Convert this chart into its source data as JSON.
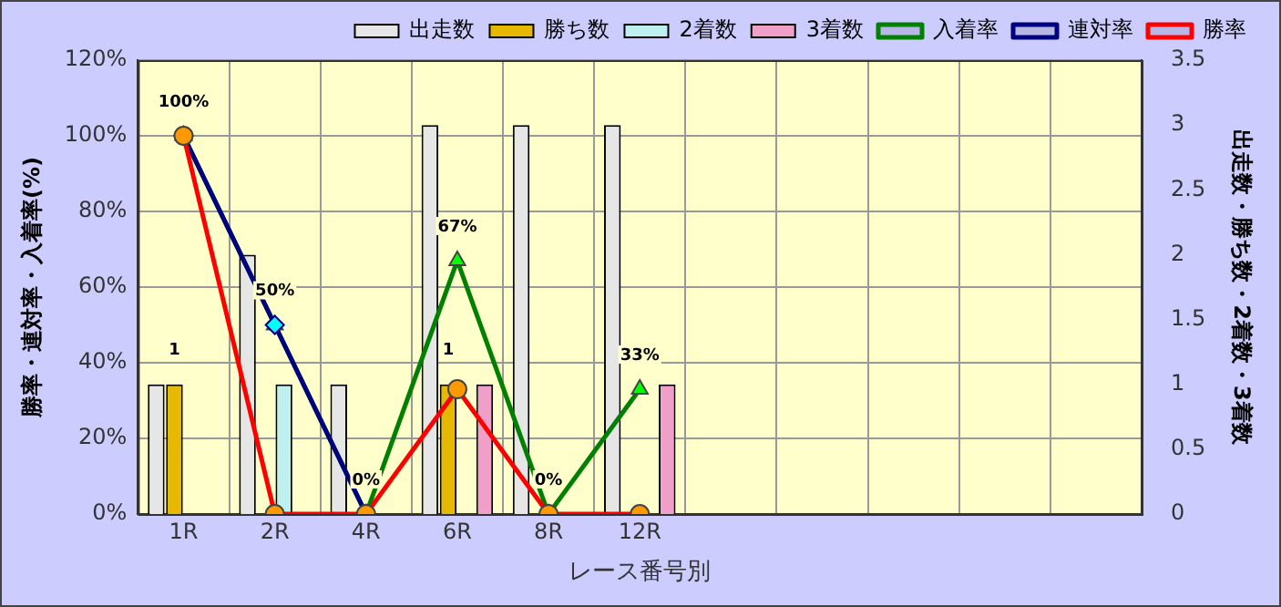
{
  "chart_data": {
    "type": "bar",
    "xlabel": "レース番号別",
    "ylabel": "勝率・連対率・入着率(%)",
    "y2label": "出走数・勝ち数・2着数・3着数",
    "categories": [
      "1R",
      "2R",
      "4R",
      "6R",
      "8R",
      "12R",
      null,
      null,
      null,
      null,
      null
    ],
    "series": [
      {
        "name": "出走数",
        "type": "bar",
        "axis": "y2",
        "color": "#e6e6e6",
        "values": [
          1,
          2,
          1,
          3,
          3,
          3,
          null,
          null,
          null,
          null,
          null
        ]
      },
      {
        "name": "勝ち数",
        "type": "bar",
        "axis": "y2",
        "color": "#e6b800",
        "values": [
          1,
          0,
          0,
          1,
          0,
          0,
          null,
          null,
          null,
          null,
          null
        ],
        "value_labels": [
          "1",
          null,
          null,
          "1",
          null,
          null,
          null,
          null,
          null,
          null,
          null
        ]
      },
      {
        "name": "2着数",
        "type": "bar",
        "axis": "y2",
        "color": "#bff0f0",
        "values": [
          0,
          1,
          0,
          0,
          0,
          0,
          null,
          null,
          null,
          null,
          null
        ]
      },
      {
        "name": "3着数",
        "type": "bar",
        "axis": "y2",
        "color": "#f0a0c8",
        "values": [
          0,
          0,
          0,
          1,
          0,
          1,
          null,
          null,
          null,
          null,
          null
        ]
      },
      {
        "name": "入着率",
        "type": "line",
        "color": "#008000",
        "colors": [
          "#00ff00",
          "#00ff00",
          "#00ff00",
          "#00ff00",
          "#00ff00",
          "#00ff00",
          null,
          null,
          null,
          null,
          null
        ],
        "marker": "triangle",
        "values": [
          100,
          50,
          0,
          67,
          0,
          33,
          null,
          null,
          null,
          null,
          null
        ],
        "value_labels": [
          "100%",
          "50%",
          "0%",
          "67%",
          "0%",
          "33%",
          null,
          null,
          null,
          null,
          null
        ]
      },
      {
        "name": "連対率",
        "type": "line",
        "color": "#000080",
        "colors": [
          "#00ffff",
          "#00ffff",
          "#00ffff",
          "#00ffff",
          "#00ffff",
          "#00ffff",
          null,
          null,
          null,
          null,
          null
        ],
        "marker": "diamond",
        "values": [
          100,
          50,
          0,
          null,
          null,
          null,
          null,
          null,
          null,
          null,
          null
        ]
      },
      {
        "name": "勝率",
        "type": "line",
        "color": "#ff0000",
        "colors": [
          "#ff9900",
          "#ff9900",
          "#ff9900",
          "#ff9900",
          "#ff9900",
          "#ff9900",
          null,
          null,
          null,
          null,
          null
        ],
        "marker": "circle",
        "values": [
          100,
          0,
          0,
          33,
          0,
          0,
          null,
          null,
          null,
          null,
          null
        ]
      }
    ],
    "ylim": [
      0,
      120
    ],
    "yticks": [
      {
        "value": 0,
        "label": "0%"
      },
      {
        "value": 20,
        "label": "20%"
      },
      {
        "value": 40,
        "label": "40%"
      },
      {
        "value": 60,
        "label": "60%"
      },
      {
        "value": 80,
        "label": "80%"
      },
      {
        "value": 100,
        "label": "100%"
      },
      {
        "value": 120,
        "label": "120%"
      }
    ],
    "y2lim": [
      0,
      3.5
    ],
    "y2ticks": [
      0,
      0.5,
      1,
      1.5,
      2,
      2.5,
      3,
      3.5
    ],
    "grid": true,
    "legend": "top"
  }
}
